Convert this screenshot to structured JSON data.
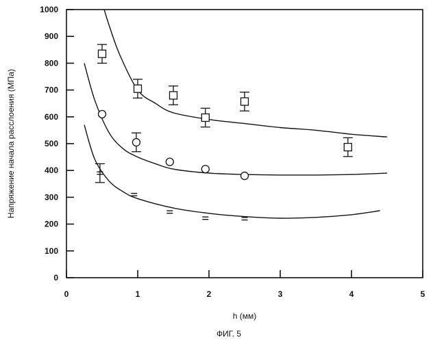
{
  "chart_data": {
    "type": "scatter",
    "xlabel": "h (мм)",
    "ylabel": "Напряжение начала расслоения (МПа)",
    "caption": "ФИГ. 5",
    "xlim": [
      0,
      5
    ],
    "ylim": [
      0,
      1000
    ],
    "x_ticks": [
      "0",
      "1",
      "2",
      "3",
      "4",
      "5"
    ],
    "y_ticks": [
      "0",
      "100",
      "200",
      "300",
      "400",
      "500",
      "600",
      "700",
      "800",
      "900",
      "1000"
    ],
    "grid": false,
    "series": [
      {
        "marker": "square",
        "points": [
          {
            "x": 0.5,
            "y": 835,
            "err": 35
          },
          {
            "x": 1.0,
            "y": 705,
            "err": 35
          },
          {
            "x": 1.5,
            "y": 680,
            "err": 35
          },
          {
            "x": 1.95,
            "y": 597,
            "err": 35
          },
          {
            "x": 2.5,
            "y": 657,
            "err": 35
          },
          {
            "x": 3.95,
            "y": 487,
            "err": 35
          }
        ]
      },
      {
        "marker": "circle",
        "points": [
          {
            "x": 0.5,
            "y": 610
          },
          {
            "x": 0.98,
            "y": 505,
            "err": 35
          },
          {
            "x": 1.45,
            "y": 432
          },
          {
            "x": 1.95,
            "y": 405
          },
          {
            "x": 2.5,
            "y": 380
          }
        ]
      },
      {
        "marker": "equals",
        "points": [
          {
            "x": 0.47,
            "y": 390,
            "err": 35
          },
          {
            "x": 0.95,
            "y": 310
          },
          {
            "x": 1.45,
            "y": 245
          },
          {
            "x": 1.95,
            "y": 222
          },
          {
            "x": 2.5,
            "y": 220
          }
        ]
      }
    ],
    "curves": [
      {
        "points": [
          [
            0.53,
            1000
          ],
          [
            0.6,
            940
          ],
          [
            0.75,
            830
          ],
          [
            1.0,
            700
          ],
          [
            1.25,
            650
          ],
          [
            1.5,
            615
          ],
          [
            2.0,
            590
          ],
          [
            2.5,
            575
          ],
          [
            3.0,
            560
          ],
          [
            3.5,
            550
          ],
          [
            4.0,
            535
          ],
          [
            4.5,
            525
          ]
        ]
      },
      {
        "points": [
          [
            0.25,
            800
          ],
          [
            0.4,
            660
          ],
          [
            0.6,
            540
          ],
          [
            0.8,
            480
          ],
          [
            1.0,
            450
          ],
          [
            1.25,
            425
          ],
          [
            1.5,
            405
          ],
          [
            2.0,
            390
          ],
          [
            2.5,
            385
          ],
          [
            3.0,
            383
          ],
          [
            3.5,
            383
          ],
          [
            4.0,
            385
          ],
          [
            4.5,
            390
          ]
        ]
      },
      {
        "points": [
          [
            0.25,
            570
          ],
          [
            0.4,
            440
          ],
          [
            0.6,
            360
          ],
          [
            0.8,
            320
          ],
          [
            1.0,
            295
          ],
          [
            1.5,
            260
          ],
          [
            2.0,
            240
          ],
          [
            2.5,
            228
          ],
          [
            3.0,
            222
          ],
          [
            3.5,
            225
          ],
          [
            4.0,
            235
          ],
          [
            4.4,
            250
          ]
        ]
      }
    ]
  }
}
